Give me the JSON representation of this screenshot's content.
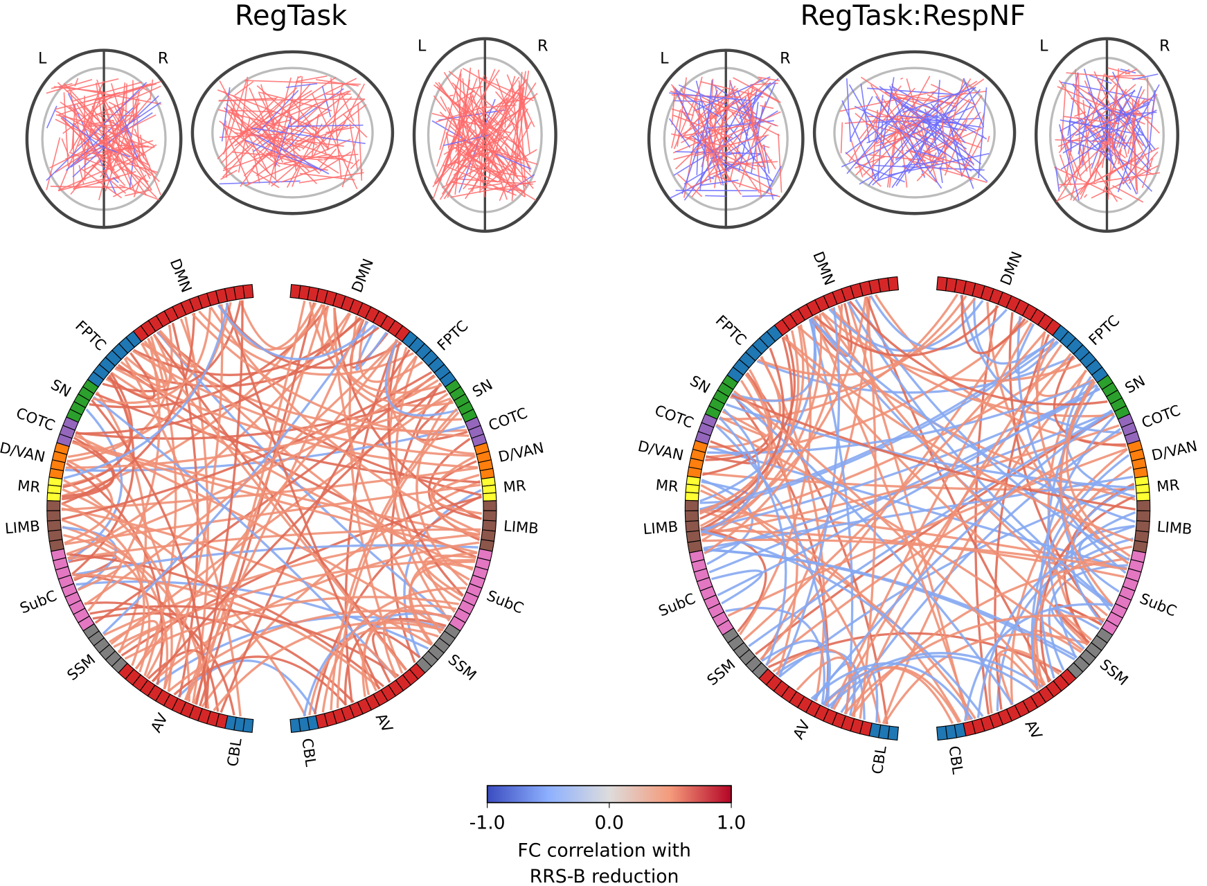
{
  "panels": [
    {
      "title": "RegTask",
      "brain_labels": [
        "L",
        "R",
        "L",
        "R"
      ],
      "networks": [
        "DMN",
        "FPTC",
        "SN",
        "COTC",
        "D/VAN",
        "MR",
        "LIMB",
        "SubC",
        "SSM",
        "AV",
        "CBL"
      ]
    },
    {
      "title": "RegTask:RespNF",
      "brain_labels": [
        "L",
        "R",
        "L",
        "R"
      ],
      "networks": [
        "DMN",
        "FPTC",
        "SN",
        "COTC",
        "D/VAN",
        "MR",
        "LIMB",
        "SubC",
        "SSM",
        "AV",
        "CBL"
      ]
    }
  ],
  "colorbar": {
    "ticks": [
      "-1.0",
      "0.0",
      "1.0"
    ],
    "label": [
      "FC correlation with",
      "RRS-B reduction"
    ]
  }
}
